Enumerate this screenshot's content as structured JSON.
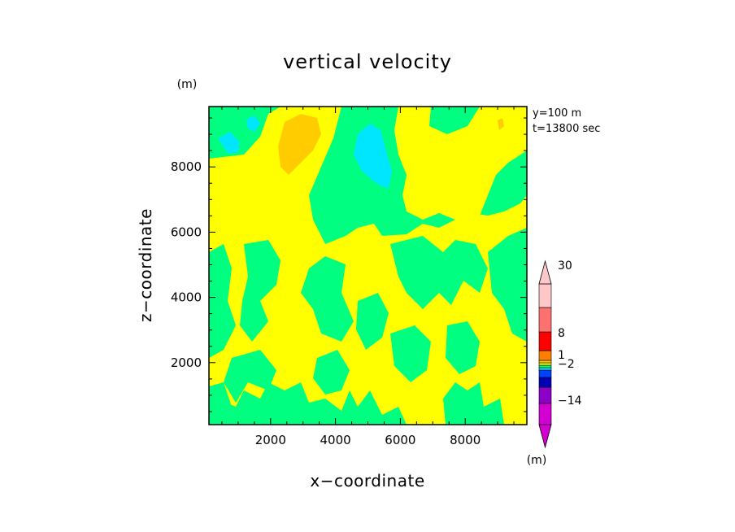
{
  "chart_data": {
    "type": "heatmap",
    "title": "vertical velocity",
    "xlabel": "x−coordinate",
    "ylabel": "z−coordinate",
    "x_unit": "(m)",
    "y_unit": "(m)",
    "colorbar_unit": "(m)",
    "xlim": [
      100,
      9900
    ],
    "ylim": [
      100,
      9850
    ],
    "xticks": [
      2000,
      4000,
      6000,
      8000
    ],
    "yticks": [
      2000,
      4000,
      6000,
      8000
    ],
    "xtick_labels": [
      "2000",
      "4000",
      "6000",
      "8000"
    ],
    "ytick_labels": [
      "2000",
      "4000",
      "6000",
      "8000"
    ],
    "info": [
      "y=100  m",
      "t=13800  sec"
    ],
    "colorbar": {
      "colors": [
        "#d200d2",
        "#8c00c8",
        "#0000b4",
        "#0040ff",
        "#00e6ff",
        "#00ff80",
        "#ffff00",
        "#ffcc00",
        "#ff8000",
        "#ff0000",
        "#ff7070",
        "#ffc8c8"
      ],
      "labels": [
        "−14",
        "−2",
        "1",
        "8",
        "30"
      ]
    },
    "regions_approx": [
      {
        "value": "yellow",
        "x": [
          2500,
          9900
        ],
        "z": [
          8000,
          9850
        ]
      },
      {
        "value": "orange",
        "x": [
          2200,
          3800
        ],
        "z": [
          7800,
          9500
        ]
      },
      {
        "value": "cyan",
        "x": [
          4200,
          5800
        ],
        "z": [
          7300,
          9300
        ]
      },
      {
        "value": "cyan",
        "x": [
          300,
          1200
        ],
        "z": [
          8300,
          9000
        ]
      },
      {
        "value": "cyan",
        "x": [
          1200,
          1700
        ],
        "z": [
          8900,
          9500
        ]
      },
      {
        "value": "green",
        "x": [
          3200,
          9900
        ],
        "z": [
          5000,
          9300
        ]
      }
    ]
  },
  "colors": {
    "field_green": "#00ff80",
    "field_yellow": "#ffff00",
    "field_orange": "#ffcc00",
    "field_cyan": "#00e6ff"
  }
}
